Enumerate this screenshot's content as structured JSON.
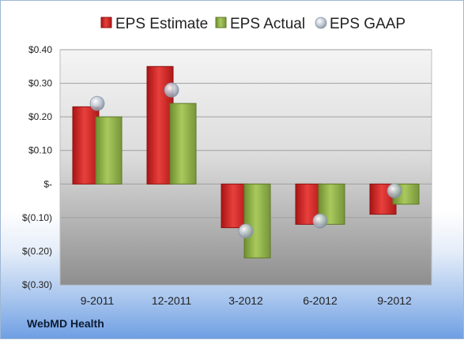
{
  "company": "WebMD Health",
  "chart_data": {
    "type": "bar",
    "categories": [
      "9-2011",
      "12-2011",
      "3-2012",
      "6-2012",
      "9-2012"
    ],
    "series": [
      {
        "name": "EPS Estimate",
        "kind": "bar",
        "color": "#d42a2a",
        "values": [
          0.23,
          0.35,
          -0.13,
          -0.12,
          -0.09
        ]
      },
      {
        "name": "EPS Actual",
        "kind": "bar",
        "color": "#8fb04a",
        "values": [
          0.2,
          0.24,
          -0.22,
          -0.12,
          -0.06
        ]
      },
      {
        "name": "EPS GAAP",
        "kind": "marker",
        "color": "#a8b4c4",
        "values": [
          0.24,
          0.28,
          -0.14,
          -0.11,
          -0.02
        ]
      }
    ],
    "yticks": [
      0.4,
      0.3,
      0.2,
      0.1,
      0,
      -0.1,
      -0.2,
      -0.3
    ],
    "ytick_labels": [
      "$0.40",
      "$0.30",
      "$0.20",
      "$0.10",
      "$-",
      "$(0.10)",
      "$(0.20)",
      "$(0.30)"
    ],
    "ylim": [
      -0.3,
      0.4
    ],
    "grid": true,
    "legend_position": "top"
  }
}
